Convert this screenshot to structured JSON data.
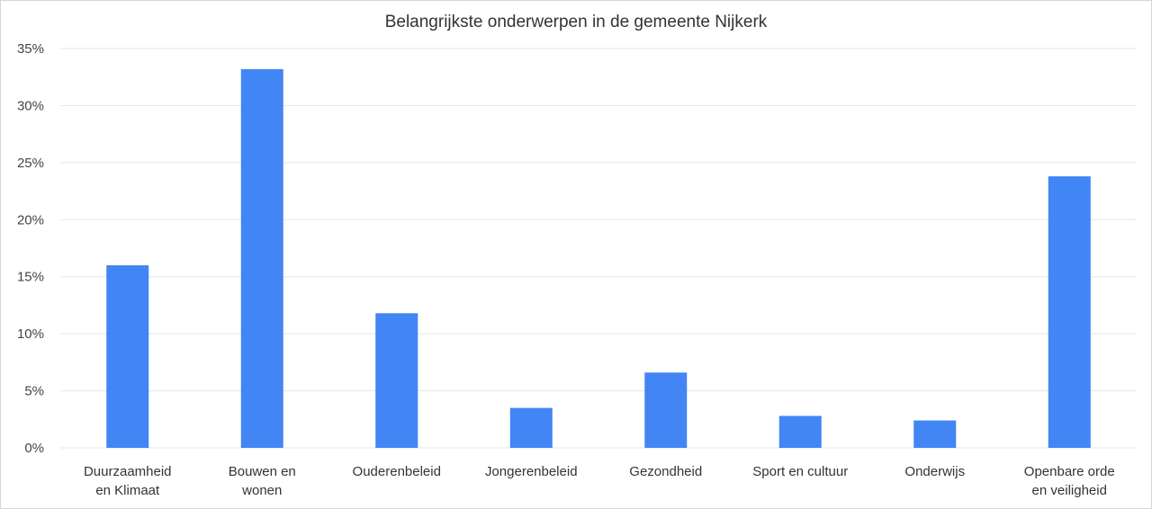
{
  "chart_data": {
    "type": "bar",
    "title": "Belangrijkste onderwerpen in de gemeente Nijkerk",
    "xlabel": "",
    "ylabel": "",
    "categories": [
      [
        "Duurzaamheid",
        "en Klimaat"
      ],
      [
        "Bouwen en",
        "wonen"
      ],
      [
        "Ouderenbeleid"
      ],
      [
        "Jongerenbeleid"
      ],
      [
        "Gezondheid"
      ],
      [
        "Sport en cultuur"
      ],
      [
        "Onderwijs"
      ],
      [
        "Openbare orde",
        "en veiligheid"
      ]
    ],
    "values": [
      16.0,
      33.2,
      11.8,
      3.5,
      6.6,
      2.8,
      2.4,
      23.8
    ],
    "ylim": [
      0,
      35
    ],
    "yticks": [
      0,
      5,
      10,
      15,
      20,
      25,
      30,
      35
    ],
    "ytick_labels": [
      "0%",
      "5%",
      "10%",
      "15%",
      "20%",
      "25%",
      "30%",
      "35%"
    ],
    "grid": true,
    "legend": "none",
    "bar_color": "#4285f4",
    "grid_color": "#e5e5e5"
  }
}
